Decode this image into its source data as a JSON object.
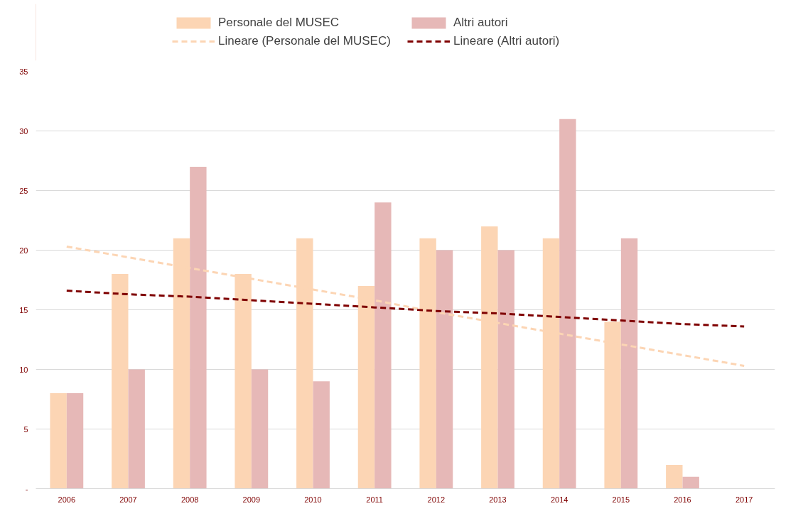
{
  "chart_data": {
    "type": "bar",
    "categories": [
      "2006",
      "2007",
      "2008",
      "2009",
      "2010",
      "2011",
      "2012",
      "2013",
      "2014",
      "2015",
      "2016",
      "2017"
    ],
    "series": [
      {
        "name": "Personale del MUSEC",
        "color": "#fcd5b4",
        "values": [
          8,
          18,
          21,
          18,
          21,
          17,
          21,
          22,
          21,
          14,
          2,
          0
        ]
      },
      {
        "name": "Altri autori",
        "color": "#e6b8b7",
        "values": [
          8,
          10,
          27,
          10,
          9,
          24,
          20,
          20,
          31,
          21,
          1,
          0
        ]
      },
      {
        "name": "Lineare (Personale del MUSEC)",
        "type": "line",
        "line_style": "dashed",
        "color": "#fcd5b4",
        "values": [
          20.3,
          19.4,
          18.5,
          17.6,
          16.7,
          15.8,
          14.8,
          13.9,
          13.0,
          12.1,
          11.2,
          10.3
        ]
      },
      {
        "name": "Lineare (Altri autori)",
        "type": "line",
        "line_style": "dashed",
        "color": "#7f0000",
        "values": [
          16.6,
          16.3,
          16.1,
          15.8,
          15.5,
          15.2,
          14.9,
          14.7,
          14.4,
          14.1,
          13.8,
          13.6
        ]
      }
    ],
    "ylim": [
      0,
      35
    ],
    "yticks": [
      {
        "value": 0,
        "label": "-"
      },
      5,
      10,
      15,
      20,
      25,
      30,
      35
    ],
    "grid": "y",
    "legend": "top"
  }
}
